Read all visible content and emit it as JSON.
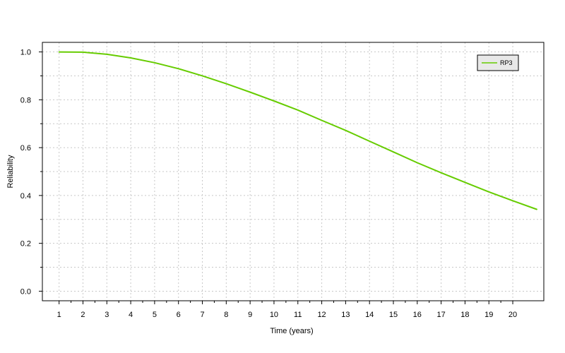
{
  "chart_data": {
    "type": "line",
    "title": "",
    "xlabel": "Time (years)",
    "ylabel": "Reliability",
    "xlim": [
      0.3,
      21.3
    ],
    "ylim": [
      -0.04,
      1.04
    ],
    "grid": true,
    "legend_position": "top-right",
    "x_ticks": [
      1,
      2,
      3,
      4,
      5,
      6,
      7,
      8,
      9,
      10,
      11,
      12,
      13,
      14,
      15,
      16,
      17,
      18,
      19,
      20
    ],
    "y_ticks": [
      0.0,
      0.2,
      0.4,
      0.6,
      0.8,
      1.0
    ],
    "y_tick_labels": [
      "0.0",
      "0.2",
      "0.4",
      "0.6",
      "0.8",
      "1.0"
    ],
    "series": [
      {
        "name": "RP3",
        "color": "#66cc00",
        "x": [
          1,
          2,
          3,
          4,
          5,
          6,
          7,
          8,
          9,
          10,
          11,
          12,
          13,
          14,
          15,
          16,
          17,
          18,
          19,
          20,
          21
        ],
        "y": [
          1.0,
          0.999,
          0.99,
          0.975,
          0.955,
          0.93,
          0.9,
          0.867,
          0.832,
          0.795,
          0.757,
          0.714,
          0.672,
          0.627,
          0.582,
          0.537,
          0.495,
          0.455,
          0.415,
          0.378,
          0.342
        ]
      }
    ]
  }
}
